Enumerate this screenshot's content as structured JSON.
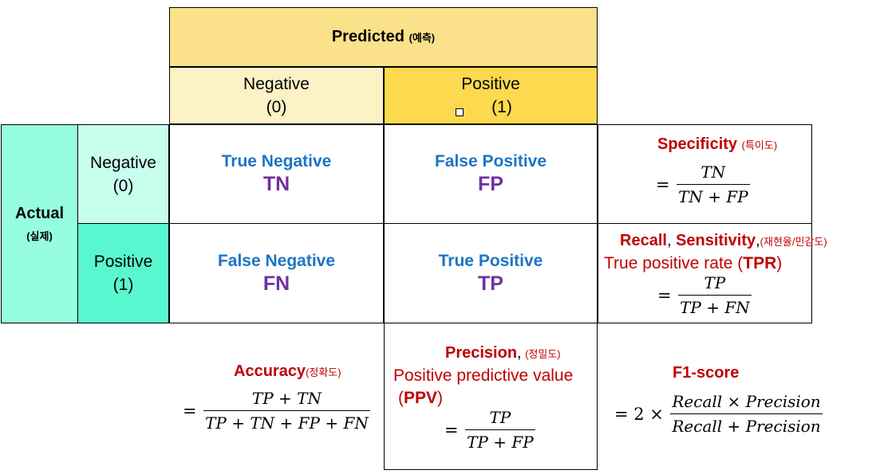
{
  "header": {
    "predicted_label": "Predicted",
    "predicted_sub": "(예측)",
    "neg_label": "Negative",
    "neg_value": "(0)",
    "pos_label": "Positive",
    "pos_value": "(1)"
  },
  "side": {
    "actual_label": "Actual",
    "actual_sub": "(실제)",
    "neg_label": "Negative",
    "neg_value": "(0)",
    "pos_label": "Positive",
    "pos_value": "(1)"
  },
  "cells": {
    "tn": {
      "name": "True Negative",
      "abbr": "TN"
    },
    "fp": {
      "name": "False Positive",
      "abbr": "FP"
    },
    "fn": {
      "name": "False Negative",
      "abbr": "FN"
    },
    "tp": {
      "name": "True Positive",
      "abbr": "TP"
    }
  },
  "metrics": {
    "specificity": {
      "title": "Specificity",
      "sub": "(특이도)",
      "eq": "=",
      "num": "TN",
      "den": "TN + FP"
    },
    "recall": {
      "title_recall": "Recall",
      "comma1": ",",
      "title_sensitivity": "Sensitivity",
      "comma2": ",",
      "sub": "(재현율/민감도)",
      "line2_prefix": "True positive rate (",
      "line2_abbr": "TPR",
      "line2_suffix": ")",
      "eq": "=",
      "num": "TP",
      "den": "TP + FN"
    },
    "accuracy": {
      "title": "Accuracy",
      "sub": "(정확도)",
      "eq": "=",
      "num": "TP + TN",
      "den": "TP + TN + FP + FN"
    },
    "precision": {
      "title": "Precision",
      "comma": ",",
      "sub": "(정밀도)",
      "line2": "Positive predictive value",
      "line3_prefix": "(",
      "line3_abbr": "PPV",
      "line3_suffix": ")",
      "eq": "=",
      "num": "TP",
      "den": "TP + FP"
    },
    "f1": {
      "title": "F1-score",
      "eq": "= 2 ×",
      "num": "Recall × Precision",
      "den": "Recall + Precision"
    }
  },
  "colors": {
    "predicted_bg": "#fbe18a",
    "pred_negative_bg": "#fdf1c6",
    "pred_positive_bg": "#fcd94e",
    "actual_bg": "#96fde0",
    "actual_negative_bg": "#c8feee",
    "actual_positive_bg": "#59f7cf",
    "cell_name": "#1d74c5",
    "cell_abbr": "#7030a0",
    "metric_title": "#c00000"
  }
}
